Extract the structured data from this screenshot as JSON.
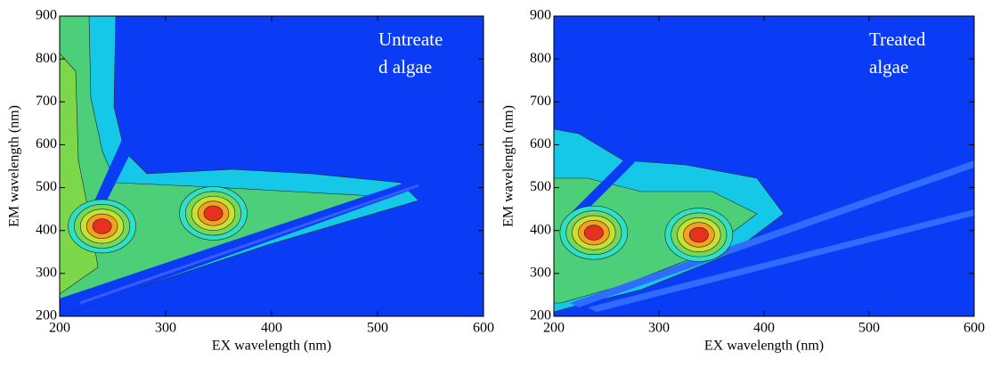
{
  "chart_data": [
    {
      "type": "contour",
      "annotation": [
        "Untreate",
        "d algae"
      ],
      "x_label": "EX wavelength (nm)",
      "y_label": "EM wavelength (nm)",
      "x": [
        240,
        345
      ],
      "values": [
        410,
        440
      ],
      "xlim": [
        200,
        600
      ],
      "ylim": [
        200,
        900
      ],
      "xticks": [
        200,
        300,
        400,
        500,
        600
      ],
      "yticks": [
        200,
        300,
        400,
        500,
        600,
        700,
        800,
        900
      ]
    },
    {
      "type": "contour",
      "annotation": [
        "Treated",
        "algae"
      ],
      "x_label": "EX wavelength (nm)",
      "y_label": "EM wavelength (nm)",
      "x": [
        238,
        338
      ],
      "values": [
        395,
        390
      ],
      "xlim": [
        200,
        600
      ],
      "ylim": [
        200,
        900
      ],
      "xticks": [
        200,
        300,
        400,
        500,
        600
      ],
      "yticks": [
        200,
        300,
        400,
        500,
        600,
        700,
        800,
        900
      ]
    }
  ]
}
